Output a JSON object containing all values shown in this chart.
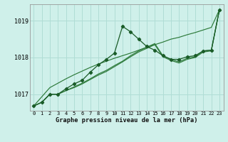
{
  "title": "Graphe pression niveau de la mer (hPa)",
  "background_color": "#cff0ea",
  "grid_color": "#b0ddd5",
  "line_dark": "#1a5c28",
  "line_mid": "#2d7a3a",
  "x_ticks": [
    0,
    1,
    2,
    3,
    4,
    5,
    6,
    7,
    8,
    9,
    10,
    11,
    12,
    13,
    14,
    15,
    16,
    17,
    18,
    19,
    20,
    21,
    22,
    23
  ],
  "y_ticks": [
    1017,
    1018,
    1019
  ],
  "ylim": [
    1016.55,
    1019.45
  ],
  "xlim": [
    -0.5,
    23.5
  ],
  "series_jagged": [
    1016.68,
    1016.78,
    1017.0,
    1017.0,
    1017.15,
    1017.28,
    1017.38,
    1017.6,
    1017.8,
    1017.95,
    1018.12,
    1018.85,
    1018.7,
    1018.5,
    1018.3,
    1018.2,
    1018.05,
    1017.95,
    1017.95,
    1018.02,
    1018.05,
    1018.18,
    1018.2,
    1019.3
  ],
  "series_smooth1": [
    1016.68,
    1016.78,
    1017.0,
    1017.0,
    1017.1,
    1017.2,
    1017.3,
    1017.42,
    1017.55,
    1017.65,
    1017.78,
    1017.9,
    1018.05,
    1018.18,
    1018.28,
    1018.38,
    1018.05,
    1017.95,
    1017.88,
    1017.98,
    1018.02,
    1018.18,
    1018.2,
    1019.3
  ],
  "series_smooth2": [
    1016.68,
    1016.78,
    1017.0,
    1017.0,
    1017.1,
    1017.18,
    1017.28,
    1017.4,
    1017.52,
    1017.62,
    1017.75,
    1017.88,
    1018.02,
    1018.15,
    1018.25,
    1018.35,
    1018.02,
    1017.92,
    1017.85,
    1017.95,
    1018.0,
    1018.15,
    1018.18,
    1019.3
  ],
  "series_straight": [
    1016.68,
    1016.93,
    1017.18,
    1017.3,
    1017.42,
    1017.53,
    1017.63,
    1017.73,
    1017.82,
    1017.9,
    1017.98,
    1018.05,
    1018.12,
    1018.2,
    1018.28,
    1018.35,
    1018.42,
    1018.5,
    1018.55,
    1018.62,
    1018.68,
    1018.75,
    1018.82,
    1019.3
  ]
}
